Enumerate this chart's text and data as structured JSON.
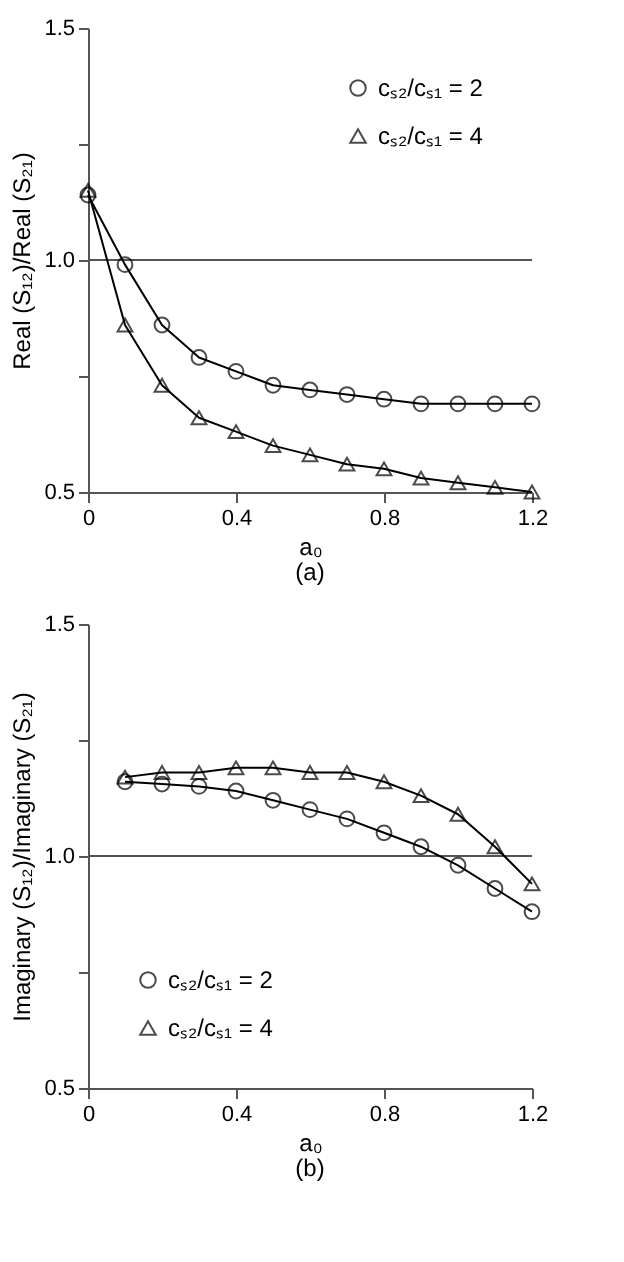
{
  "chart_data": [
    {
      "type": "line",
      "xlabel": "a₀",
      "ylabel": "Real (S₁₂)/Real (S₂₁)",
      "annotations": [
        "(a)"
      ],
      "x": [
        0,
        0.1,
        0.2,
        0.3,
        0.4,
        0.5,
        0.6,
        0.7,
        0.8,
        0.9,
        1.0,
        1.1,
        1.2
      ],
      "series": [
        {
          "name": "cₛ₂/cₛ₁ = 2",
          "color": "#000000",
          "marker": "circle",
          "values": [
            1.14,
            0.99,
            0.86,
            0.79,
            0.76,
            0.73,
            0.72,
            0.71,
            0.7,
            0.69,
            0.69,
            0.69,
            0.69
          ]
        },
        {
          "name": "cₛ₂/cₛ₁ = 4",
          "color": "#000000",
          "marker": "triangle",
          "values": [
            1.15,
            0.86,
            0.73,
            0.66,
            0.63,
            0.6,
            0.58,
            0.56,
            0.55,
            0.53,
            0.52,
            0.51,
            0.5
          ]
        }
      ],
      "xlim": [
        0,
        1.2
      ],
      "ylim": [
        0.5,
        1.5
      ],
      "xticks": [
        {
          "value": 0,
          "label": "0"
        },
        {
          "value": 0.4,
          "label": "0.4"
        },
        {
          "value": 0.8,
          "label": "0.8"
        },
        {
          "value": 1.2,
          "label": "1.2"
        }
      ],
      "yticks": [
        {
          "value": 0.5,
          "label": "0.5"
        },
        {
          "value": 0.75,
          "label": null
        },
        {
          "value": 1.0,
          "label": "1.0"
        },
        {
          "value": 1.25,
          "label": null
        },
        {
          "value": 1.5,
          "label": "1.5"
        }
      ],
      "ref_lines": [
        {
          "axis": "y",
          "value": 1.0,
          "label": null,
          "color": "#555555"
        }
      ],
      "grid": false,
      "legend": "top right",
      "line_style": "solid"
    },
    {
      "type": "line",
      "xlabel": "a₀",
      "ylabel": "Imaginary (S₁₂)/Imaginary (S₂₁)",
      "annotations": [
        "(b)"
      ],
      "x": [
        0.1,
        0.2,
        0.3,
        0.4,
        0.5,
        0.6,
        0.7,
        0.8,
        0.9,
        1.0,
        1.1,
        1.2
      ],
      "series": [
        {
          "name": "cₛ₂/cₛ₁ = 2",
          "color": "#000000",
          "marker": "circle",
          "values": [
            1.16,
            1.155,
            1.15,
            1.14,
            1.12,
            1.1,
            1.08,
            1.05,
            1.02,
            0.98,
            0.93,
            0.88
          ]
        },
        {
          "name": "cₛ₂/cₛ₁ = 4",
          "color": "#000000",
          "marker": "triangle",
          "values": [
            1.17,
            1.18,
            1.18,
            1.19,
            1.19,
            1.18,
            1.18,
            1.16,
            1.13,
            1.09,
            1.02,
            0.94
          ]
        }
      ],
      "xlim": [
        0,
        1.2
      ],
      "ylim": [
        0.5,
        1.5
      ],
      "xticks": [
        {
          "value": 0,
          "label": "0"
        },
        {
          "value": 0.4,
          "label": "0.4"
        },
        {
          "value": 0.8,
          "label": "0.8"
        },
        {
          "value": 1.2,
          "label": "1.2"
        }
      ],
      "yticks": [
        {
          "value": 0.5,
          "label": "0.5"
        },
        {
          "value": 0.75,
          "label": null
        },
        {
          "value": 1.0,
          "label": "1.0"
        },
        {
          "value": 1.25,
          "label": null
        },
        {
          "value": 1.5,
          "label": "1.5"
        }
      ],
      "ref_lines": [
        {
          "axis": "y",
          "value": 1.0,
          "label": null,
          "color": "#555555"
        }
      ],
      "grid": false,
      "legend": "bottom left",
      "line_style": "solid"
    }
  ]
}
